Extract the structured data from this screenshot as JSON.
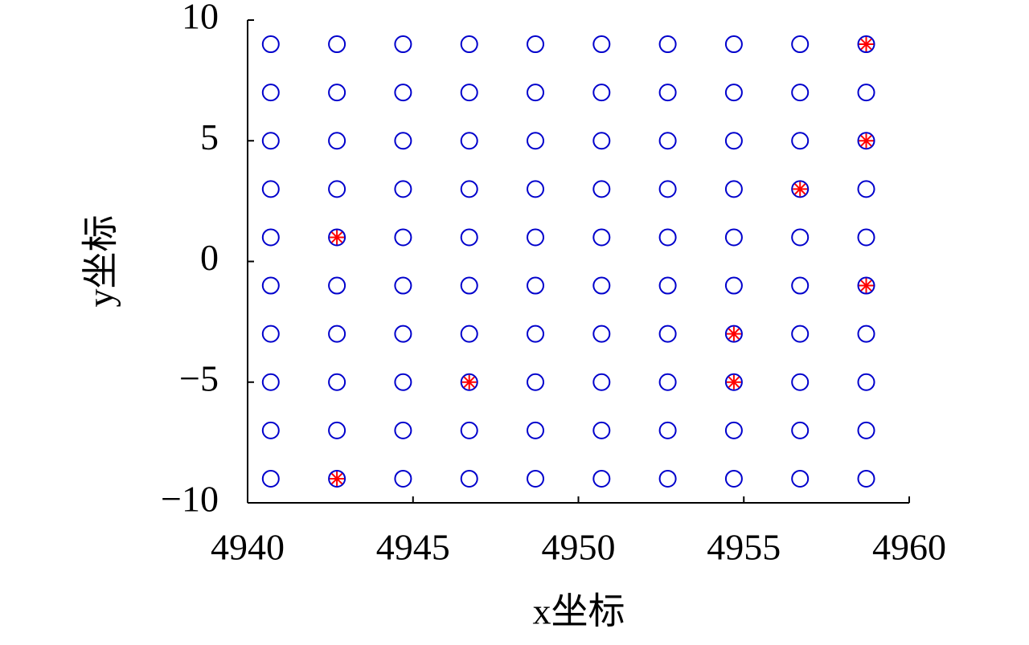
{
  "chart_data": {
    "type": "scatter",
    "xlabel": "x坐标",
    "ylabel": "y坐标",
    "xlim": [
      4940,
      4960
    ],
    "ylim": [
      -10,
      10
    ],
    "xticks": [
      4940,
      4945,
      4950,
      4955,
      4960
    ],
    "yticks": [
      10,
      5,
      0,
      {
        "value": -5,
        "label": "−5"
      },
      {
        "value": -10,
        "label": "−10"
      }
    ],
    "grid": false,
    "series": [
      {
        "marker": "circle",
        "color": "#0000cc",
        "x": [
          4940.7,
          4942.7,
          4944.7,
          4946.7,
          4948.7,
          4950.7,
          4952.7,
          4954.7,
          4956.7,
          4958.7,
          4940.7,
          4942.7,
          4944.7,
          4946.7,
          4948.7,
          4950.7,
          4952.7,
          4954.7,
          4956.7,
          4958.7,
          4940.7,
          4942.7,
          4944.7,
          4946.7,
          4948.7,
          4950.7,
          4952.7,
          4954.7,
          4956.7,
          4958.7,
          4940.7,
          4942.7,
          4944.7,
          4946.7,
          4948.7,
          4950.7,
          4952.7,
          4954.7,
          4956.7,
          4958.7,
          4940.7,
          4942.7,
          4944.7,
          4946.7,
          4948.7,
          4950.7,
          4952.7,
          4954.7,
          4956.7,
          4958.7,
          4940.7,
          4942.7,
          4944.7,
          4946.7,
          4948.7,
          4950.7,
          4952.7,
          4954.7,
          4956.7,
          4958.7,
          4940.7,
          4942.7,
          4944.7,
          4946.7,
          4948.7,
          4950.7,
          4952.7,
          4954.7,
          4956.7,
          4958.7,
          4940.7,
          4942.7,
          4944.7,
          4946.7,
          4948.7,
          4950.7,
          4952.7,
          4954.7,
          4956.7,
          4958.7,
          4940.7,
          4942.7,
          4944.7,
          4946.7,
          4948.7,
          4950.7,
          4952.7,
          4954.7,
          4956.7,
          4958.7,
          4940.7,
          4942.7,
          4944.7,
          4946.7,
          4948.7,
          4950.7,
          4952.7,
          4954.7,
          4956.7,
          4958.7
        ],
        "values": [
          9,
          9,
          9,
          9,
          9,
          9,
          9,
          9,
          9,
          9,
          7,
          7,
          7,
          7,
          7,
          7,
          7,
          7,
          7,
          7,
          5,
          5,
          5,
          5,
          5,
          5,
          5,
          5,
          5,
          5,
          3,
          3,
          3,
          3,
          3,
          3,
          3,
          3,
          3,
          3,
          1,
          1,
          1,
          1,
          1,
          1,
          1,
          1,
          1,
          1,
          -1,
          -1,
          -1,
          -1,
          -1,
          -1,
          -1,
          -1,
          -1,
          -1,
          -3,
          -3,
          -3,
          -3,
          -3,
          -3,
          -3,
          -3,
          -3,
          -3,
          -5,
          -5,
          -5,
          -5,
          -5,
          -5,
          -5,
          -5,
          -5,
          -5,
          -7,
          -7,
          -7,
          -7,
          -7,
          -7,
          -7,
          -7,
          -7,
          -7,
          -9,
          -9,
          -9,
          -9,
          -9,
          -9,
          -9,
          -9,
          -9,
          -9
        ]
      },
      {
        "marker": "star",
        "color": "#ff0000",
        "x": [
          4958.7,
          4958.7,
          4956.7,
          4942.7,
          4958.7,
          4954.7,
          4946.7,
          4954.7,
          4942.7
        ],
        "values": [
          9,
          5,
          3,
          1,
          -1,
          -3,
          -5,
          -5,
          -9
        ]
      }
    ]
  }
}
